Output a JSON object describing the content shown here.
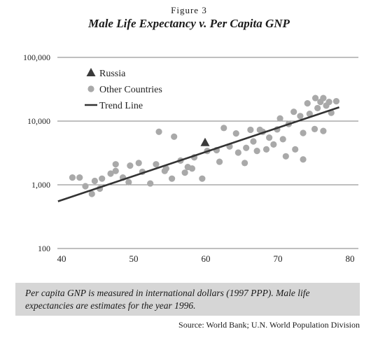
{
  "figure_label": "Figure 3",
  "note": "Per capita GNP is measured in international dollars (1997 PPP). Male life expectancies are estimates for the year 1996.",
  "source": "Source: World Bank; U.N. World Population Division",
  "chart_data": {
    "type": "scatter",
    "title": "Male Life Expectancy v. Per Capita GNP",
    "xlabel": "",
    "ylabel": "",
    "xlim": [
      40,
      80
    ],
    "ylim": [
      100,
      100000
    ],
    "y_scale": "log",
    "x_ticks": [
      "40",
      "50",
      "60",
      "70",
      "80"
    ],
    "y_ticks": [
      "100",
      "1,000",
      "10,000",
      "100,000"
    ],
    "grid": "horizontal",
    "legend_position": "top-left",
    "colors": {
      "russia": "#3a3a3a",
      "other": "#a9a9a9",
      "trend": "#333333"
    },
    "series": [
      {
        "name": "Russia",
        "marker": "triangle",
        "points": [
          [
            59.9,
            4600
          ]
        ]
      },
      {
        "name": "Other Countries",
        "marker": "circle",
        "points": [
          [
            41.5,
            1300
          ],
          [
            42.5,
            1300
          ],
          [
            43.3,
            950
          ],
          [
            44.2,
            720
          ],
          [
            44.6,
            1150
          ],
          [
            45.6,
            1250
          ],
          [
            45.3,
            870
          ],
          [
            46.8,
            1500
          ],
          [
            47.5,
            2100
          ],
          [
            47.5,
            1650
          ],
          [
            48.5,
            1300
          ],
          [
            49.5,
            2000
          ],
          [
            49.3,
            1100
          ],
          [
            50.7,
            2200
          ],
          [
            51.2,
            1600
          ],
          [
            52.3,
            1050
          ],
          [
            53.1,
            2100
          ],
          [
            54.3,
            1650
          ],
          [
            54.5,
            1800
          ],
          [
            53.5,
            6800
          ],
          [
            55.6,
            5700
          ],
          [
            55.3,
            1250
          ],
          [
            56.5,
            2400
          ],
          [
            57.1,
            1550
          ],
          [
            57.5,
            1900
          ],
          [
            58.4,
            2700
          ],
          [
            58.1,
            1800
          ],
          [
            59.5,
            1250
          ],
          [
            60.2,
            3400
          ],
          [
            61.5,
            3500
          ],
          [
            61.9,
            2300
          ],
          [
            62.5,
            7800
          ],
          [
            63.3,
            4000
          ],
          [
            64.2,
            6400
          ],
          [
            64.5,
            3200
          ],
          [
            65.4,
            2200
          ],
          [
            65.6,
            3800
          ],
          [
            66.2,
            7300
          ],
          [
            66.6,
            4800
          ],
          [
            67.1,
            3400
          ],
          [
            67.5,
            7300
          ],
          [
            67.9,
            6800
          ],
          [
            68.4,
            3600
          ],
          [
            68.8,
            5500
          ],
          [
            69.4,
            4300
          ],
          [
            69.9,
            7400
          ],
          [
            70.3,
            11000
          ],
          [
            70.7,
            5200
          ],
          [
            71.1,
            2800
          ],
          [
            71.5,
            9000
          ],
          [
            72.2,
            14000
          ],
          [
            72.4,
            3600
          ],
          [
            73.1,
            12000
          ],
          [
            73.5,
            6500
          ],
          [
            73.5,
            2500
          ],
          [
            74.1,
            19000
          ],
          [
            74.4,
            13000
          ],
          [
            75.2,
            23000
          ],
          [
            75.5,
            16000
          ],
          [
            75.9,
            20000
          ],
          [
            76.3,
            23000
          ],
          [
            76.7,
            17500
          ],
          [
            77.1,
            20000
          ],
          [
            77.4,
            13500
          ],
          [
            76.3,
            7000
          ],
          [
            78.1,
            20500
          ],
          [
            75.1,
            7500
          ]
        ]
      },
      {
        "name": "Trend Line",
        "marker": "line",
        "points": [
          [
            39.5,
            550
          ],
          [
            78.5,
            16500
          ]
        ]
      }
    ]
  }
}
